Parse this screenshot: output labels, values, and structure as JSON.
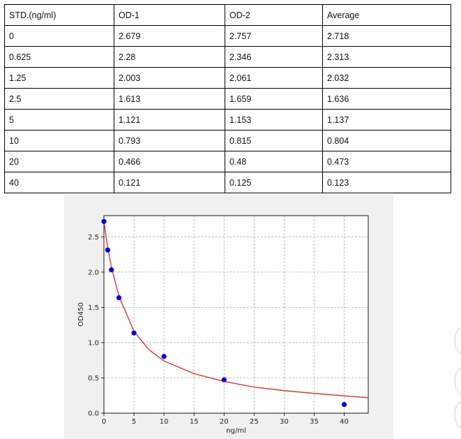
{
  "table": {
    "headers": [
      "STD.(ng/ml)",
      "OD-1",
      "OD-2",
      "Average"
    ],
    "rows": [
      [
        "0",
        "2.679",
        "2.757",
        "2.718"
      ],
      [
        "0.625",
        "2.28",
        "2.346",
        "2.313"
      ],
      [
        "1.25",
        "2.003",
        "2.061",
        "2.032"
      ],
      [
        "2.5",
        "1.613",
        "1.659",
        "1.636"
      ],
      [
        "5",
        "1.121",
        "1.153",
        "1.137"
      ],
      [
        "10",
        "0.793",
        "0.815",
        "0.804"
      ],
      [
        "20",
        "0.466",
        "0.48",
        "0.473"
      ],
      [
        "40",
        "0.121",
        "0.125",
        "0.123"
      ]
    ]
  },
  "chart_data": {
    "type": "scatter",
    "xlabel": "ng/ml",
    "ylabel": "OD450",
    "xlim": [
      0,
      44
    ],
    "ylim": [
      0,
      2.8
    ],
    "xticks": [
      "0",
      "5",
      "10",
      "15",
      "20",
      "25",
      "30",
      "35",
      "40"
    ],
    "yticks": [
      "0.0",
      "0.5",
      "1.0",
      "1.5",
      "2.0",
      "2.5"
    ],
    "grid": true,
    "series": [
      {
        "kind": "points",
        "color": "#0000dd",
        "x": [
          0,
          0.625,
          1.25,
          2.5,
          5,
          10,
          20,
          40
        ],
        "y": [
          2.718,
          2.313,
          2.032,
          1.636,
          1.137,
          0.804,
          0.473,
          0.123
        ]
      },
      {
        "kind": "fit-curve",
        "color": "#d62728",
        "x": [
          0,
          0.625,
          1.25,
          2.5,
          5,
          7.5,
          10,
          15,
          20,
          25,
          30,
          35,
          40,
          44
        ],
        "y": [
          2.72,
          2.35,
          2.07,
          1.66,
          1.16,
          0.9,
          0.74,
          0.56,
          0.45,
          0.37,
          0.32,
          0.28,
          0.245,
          0.22
        ]
      }
    ]
  }
}
